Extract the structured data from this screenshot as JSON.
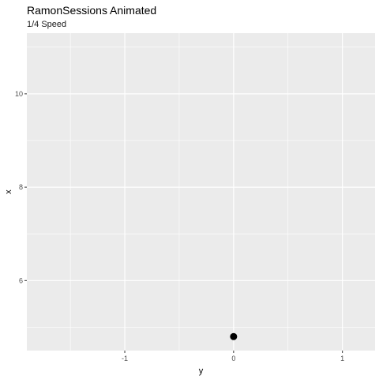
{
  "chart_data": {
    "type": "scatter",
    "title": "RamonSessions Animated",
    "subtitle": "1/4 Speed",
    "xlabel": "y",
    "ylabel": "x",
    "xlim": [
      -1.9,
      1.3
    ],
    "ylim": [
      4.5,
      11.3
    ],
    "x_ticks": [
      -1,
      0,
      1
    ],
    "x_tick_labels": [
      "-1",
      "0",
      "1"
    ],
    "y_ticks": [
      6,
      8,
      10
    ],
    "y_tick_labels": [
      "6",
      "8",
      "10"
    ],
    "grid": true,
    "panel_color": "#ebebeb",
    "grid_color": "#ffffff",
    "point_color": "#000000",
    "points": [
      {
        "x": 0,
        "y": 4.8
      }
    ]
  }
}
